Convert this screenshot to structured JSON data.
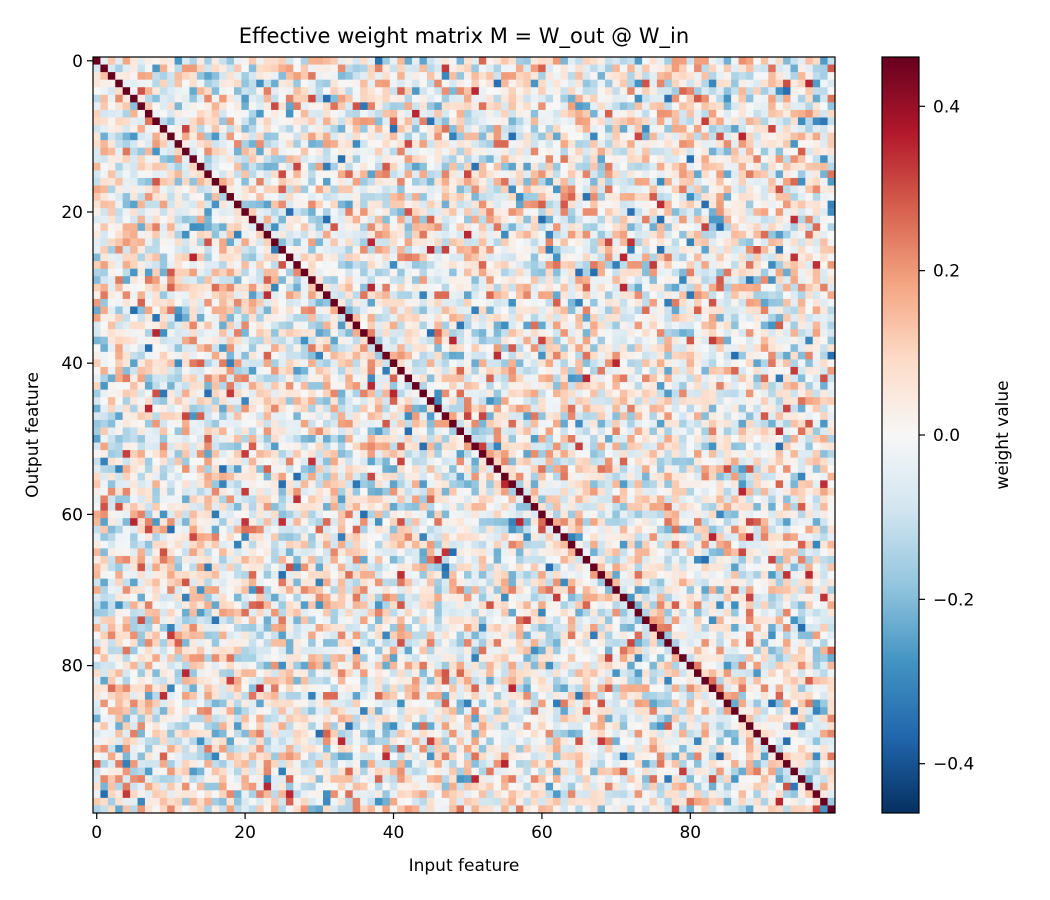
{
  "chart_data": {
    "type": "heatmap",
    "title": "Effective weight matrix M = W_out @ W_in",
    "xlabel": "Input feature",
    "ylabel": "Output feature",
    "rows": 100,
    "cols": 100,
    "x_ticks": [
      "0",
      "20",
      "40",
      "60",
      "80"
    ],
    "x_tick_values": [
      0,
      20,
      40,
      60,
      80
    ],
    "y_ticks": [
      "0",
      "20",
      "40",
      "60",
      "80"
    ],
    "y_tick_values": [
      0,
      20,
      40,
      60,
      80
    ],
    "diagonal_value": 0.46,
    "off_diagonal_range": [
      -0.35,
      0.35
    ],
    "off_diagonal_std_approx": 0.13,
    "colormap": "RdBu_r",
    "colorbar": {
      "label": "weight value",
      "vmin": -0.46,
      "vmax": 0.46,
      "ticks": [
        "0.4",
        "0.2",
        "0.0",
        "−0.2",
        "−0.4"
      ],
      "tick_values": [
        0.4,
        0.2,
        0.0,
        -0.2,
        -0.4
      ]
    }
  }
}
